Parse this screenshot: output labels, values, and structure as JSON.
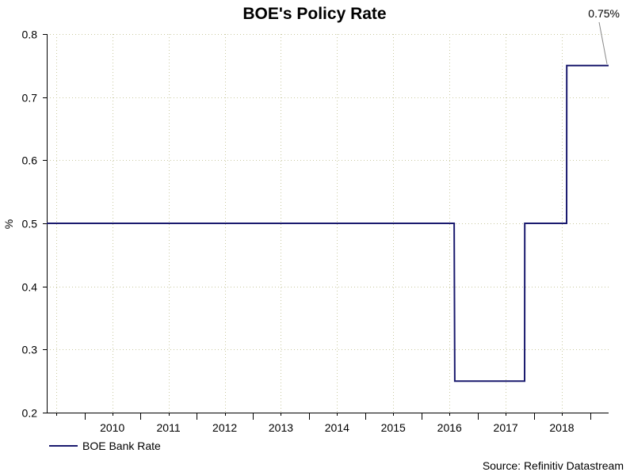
{
  "chart_data": {
    "type": "line",
    "title": "BOE's Policy Rate",
    "xlabel": "",
    "ylabel": "%",
    "ylim": [
      0.2,
      0.8
    ],
    "y_ticks": [
      "0.2",
      "0.3",
      "0.4",
      "0.5",
      "0.6",
      "0.7",
      "0.8"
    ],
    "xlim": [
      "2009-05-01",
      "2019-05-01"
    ],
    "x_tick_labels": [
      "2010",
      "2011",
      "2012",
      "2013",
      "2014",
      "2015",
      "2016",
      "2017",
      "2018"
    ],
    "grid": true,
    "legend_position": "bottom-left",
    "series": [
      {
        "name": "BOE Bank Rate",
        "color": "#1a1a6e",
        "points": [
          [
            "2009-05-01",
            0.5
          ],
          [
            "2016-07-31",
            0.5
          ],
          [
            "2016-08-04",
            0.25
          ],
          [
            "2017-11-01",
            0.25
          ],
          [
            "2017-11-02",
            0.5
          ],
          [
            "2018-08-01",
            0.5
          ],
          [
            "2018-08-02",
            0.75
          ],
          [
            "2019-05-01",
            0.75
          ]
        ]
      }
    ],
    "annotations": [
      {
        "text": "0.75%",
        "x": "2019-05-01",
        "y": 0.75
      }
    ],
    "source": "Source: Refinitiv Datastream"
  }
}
